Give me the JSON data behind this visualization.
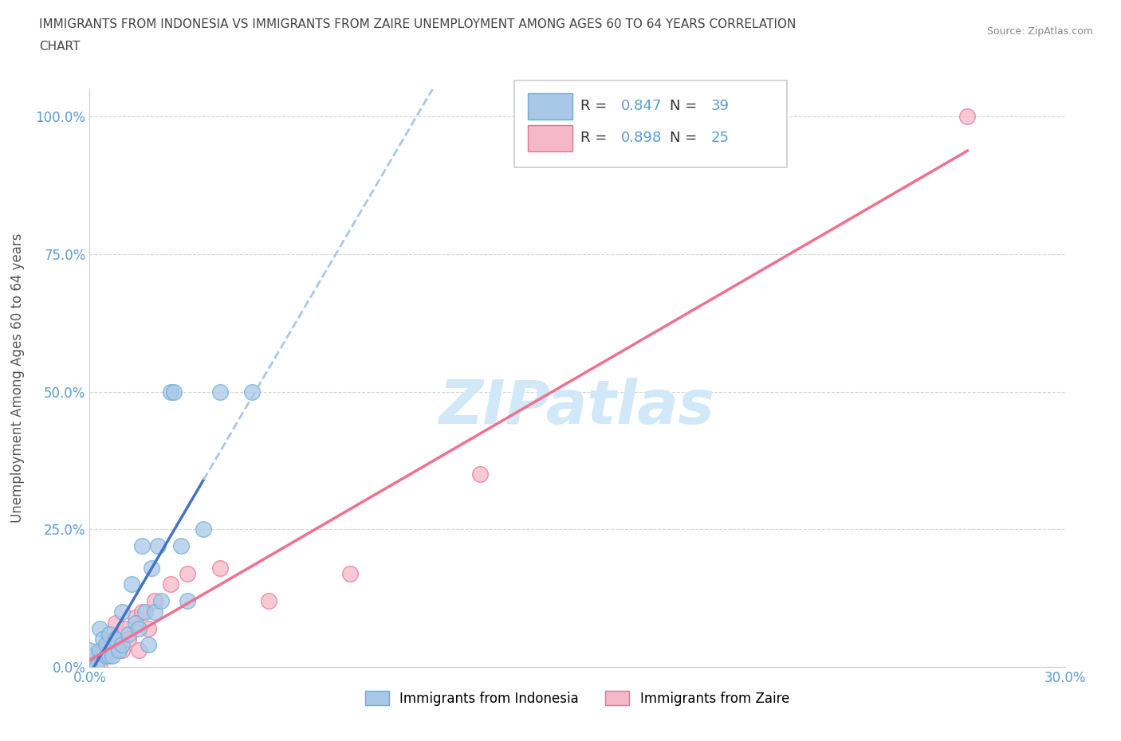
{
  "title_line1": "IMMIGRANTS FROM INDONESIA VS IMMIGRANTS FROM ZAIRE UNEMPLOYMENT AMONG AGES 60 TO 64 YEARS CORRELATION",
  "title_line2": "CHART",
  "source_text": "Source: ZipAtlas.com",
  "ylabel": "Unemployment Among Ages 60 to 64 years",
  "xlim": [
    0.0,
    0.3
  ],
  "ylim": [
    0.0,
    1.05
  ],
  "xticks": [
    0.0,
    0.05,
    0.1,
    0.15,
    0.2,
    0.25,
    0.3
  ],
  "yticks": [
    0.0,
    0.25,
    0.5,
    0.75,
    1.0
  ],
  "yticklabels": [
    "0.0%",
    "25.0%",
    "50.0%",
    "75.0%",
    "100.0%"
  ],
  "indonesia_color": "#a8c8e8",
  "indonesia_edge": "#6aaed6",
  "zaire_color": "#f4b8c8",
  "zaire_edge": "#f07090",
  "indonesia_line_color": "#4472c4",
  "zaire_line_color": "#f07090",
  "indonesia_dash_color": "#a8c8e8",
  "R_indonesia": 0.847,
  "N_indonesia": 39,
  "R_zaire": 0.898,
  "N_zaire": 25,
  "legend_label_indonesia": "Immigrants from Indonesia",
  "legend_label_zaire": "Immigrants from Zaire",
  "watermark": "ZIPatlas",
  "watermark_color": "#d0e8f8",
  "grid_color": "#cccccc",
  "background_color": "#ffffff",
  "indonesia_x": [
    0.0,
    0.0,
    0.0,
    0.0,
    0.0,
    0.0,
    0.0,
    0.0,
    0.002,
    0.003,
    0.003,
    0.004,
    0.005,
    0.005,
    0.006,
    0.006,
    0.007,
    0.008,
    0.009,
    0.01,
    0.01,
    0.012,
    0.013,
    0.014,
    0.015,
    0.016,
    0.017,
    0.018,
    0.019,
    0.02,
    0.021,
    0.022,
    0.025,
    0.026,
    0.028,
    0.03,
    0.035,
    0.04,
    0.05
  ],
  "indonesia_y": [
    0.0,
    0.0,
    0.0,
    0.0,
    0.0,
    0.01,
    0.02,
    0.03,
    0.0,
    0.03,
    0.07,
    0.05,
    0.02,
    0.04,
    0.02,
    0.06,
    0.02,
    0.05,
    0.03,
    0.04,
    0.1,
    0.06,
    0.15,
    0.08,
    0.07,
    0.22,
    0.1,
    0.04,
    0.18,
    0.1,
    0.22,
    0.12,
    0.5,
    0.5,
    0.22,
    0.12,
    0.25,
    0.5,
    0.5
  ],
  "zaire_x": [
    0.0,
    0.0,
    0.0,
    0.0,
    0.003,
    0.004,
    0.005,
    0.006,
    0.007,
    0.008,
    0.01,
    0.011,
    0.012,
    0.014,
    0.015,
    0.016,
    0.018,
    0.02,
    0.025,
    0.03,
    0.04,
    0.055,
    0.08,
    0.12,
    0.27
  ],
  "zaire_y": [
    0.0,
    0.0,
    0.0,
    0.02,
    0.0,
    0.03,
    0.02,
    0.04,
    0.05,
    0.08,
    0.03,
    0.07,
    0.05,
    0.09,
    0.03,
    0.1,
    0.07,
    0.12,
    0.15,
    0.17,
    0.18,
    0.12,
    0.17,
    0.35,
    1.0
  ]
}
